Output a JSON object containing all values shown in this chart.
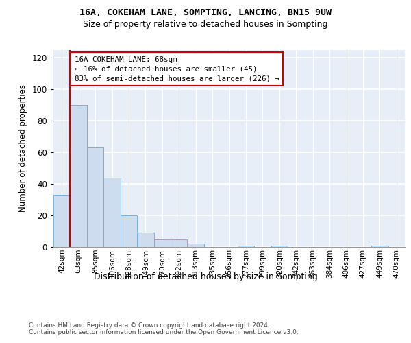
{
  "title1": "16A, COKEHAM LANE, SOMPTING, LANCING, BN15 9UW",
  "title2": "Size of property relative to detached houses in Sompting",
  "xlabel": "Distribution of detached houses by size in Sompting",
  "ylabel": "Number of detached properties",
  "bar_color": "#cddcee",
  "bar_edge_color": "#7aafd4",
  "subject_line_color": "#cc0000",
  "categories": [
    "42sqm",
    "63sqm",
    "85sqm",
    "106sqm",
    "128sqm",
    "149sqm",
    "170sqm",
    "192sqm",
    "213sqm",
    "235sqm",
    "256sqm",
    "277sqm",
    "299sqm",
    "320sqm",
    "342sqm",
    "363sqm",
    "384sqm",
    "406sqm",
    "427sqm",
    "449sqm",
    "470sqm"
  ],
  "values": [
    33,
    90,
    63,
    44,
    20,
    9,
    5,
    5,
    2,
    0,
    0,
    1,
    0,
    1,
    0,
    0,
    0,
    0,
    0,
    1,
    0
  ],
  "ylim": [
    0,
    125
  ],
  "yticks": [
    0,
    20,
    40,
    60,
    80,
    100,
    120
  ],
  "subject_bar_index": 1,
  "annotation_line1": "16A COKEHAM LANE: 68sqm",
  "annotation_line2": "← 16% of detached houses are smaller (45)",
  "annotation_line3": "83% of semi-detached houses are larger (226) →",
  "footer_text": "Contains HM Land Registry data © Crown copyright and database right 2024.\nContains public sector information licensed under the Open Government Licence v3.0.",
  "background_color": "#ffffff",
  "plot_bg_color": "#e8eef7",
  "grid_color": "#ffffff"
}
